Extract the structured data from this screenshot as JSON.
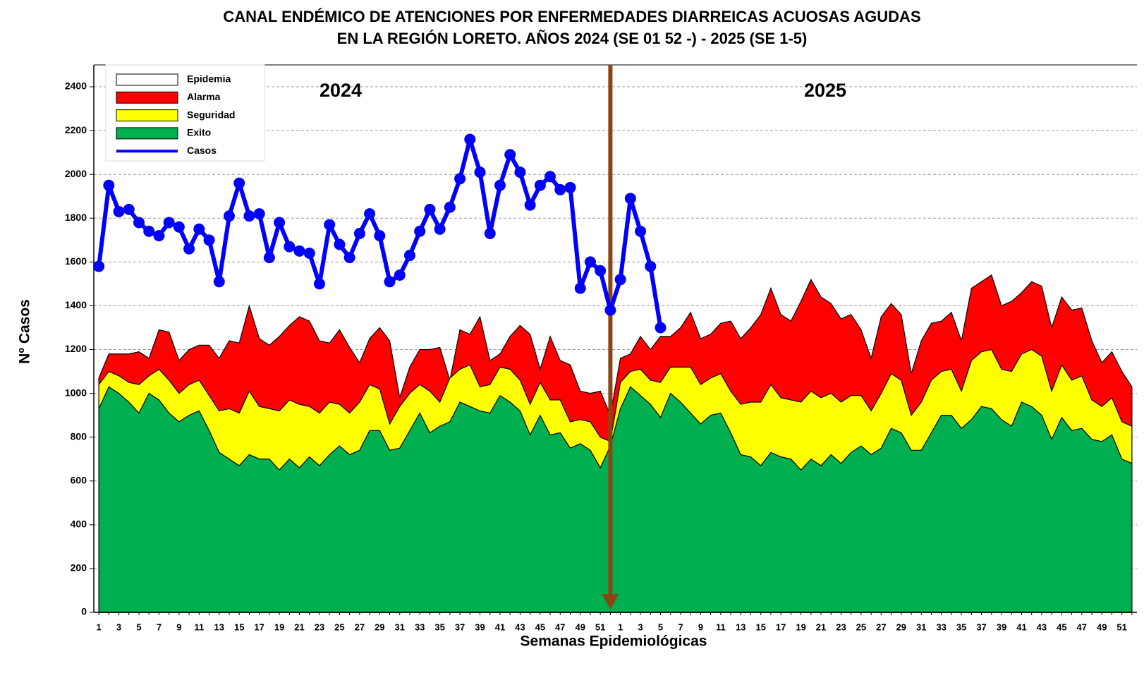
{
  "chart_data": {
    "type": "area",
    "title": "CANAL ENDÉMICO DE ATENCIONES POR ENFERMEDADES DIARREICAS ACUOSAS AGUDAS",
    "subtitle": "EN LA REGIÓN LORETO.  AÑOS 2024 (SE 01 52 -) - 2025 (SE 1-5)",
    "x_label": "Semanas Epidemiológicas",
    "y_label": "Nº Casos",
    "annotations": [
      "2024",
      "2025"
    ],
    "legend": "upper left",
    "grid": true,
    "ylim": [
      0,
      2500
    ],
    "yticks": [
      0,
      200,
      400,
      600,
      800,
      1000,
      1200,
      1400,
      1600,
      1800,
      2000,
      2200,
      2400
    ],
    "categories": [
      "1",
      null,
      "3",
      null,
      "5",
      null,
      "7",
      null,
      "9",
      null,
      "11",
      null,
      "13",
      null,
      "15",
      null,
      "17",
      null,
      "19",
      null,
      "21",
      null,
      "23",
      null,
      "25",
      null,
      "27",
      null,
      "29",
      null,
      "31",
      null,
      "33",
      null,
      "35",
      null,
      "37",
      null,
      "39",
      null,
      "41",
      null,
      "43",
      null,
      "45",
      null,
      "47",
      null,
      "49",
      null,
      "51",
      null,
      "1",
      null,
      "3",
      null,
      "5",
      null,
      "7",
      null,
      "9",
      null,
      "11",
      null,
      "13",
      null,
      "15",
      null,
      "17",
      null,
      "19",
      null,
      "21",
      null,
      "23",
      null,
      "25",
      null,
      "27",
      null,
      "29",
      null,
      "31",
      null,
      "33",
      null,
      "35",
      null,
      "37",
      null,
      "39",
      null,
      "41",
      null,
      "43",
      null,
      "45",
      null,
      "47",
      null,
      "49",
      null,
      "51",
      null
    ],
    "series": [
      {
        "name": "Epidemia",
        "color": "#ffffff"
      },
      {
        "name": "Alarma",
        "color": "#ff0000",
        "values": [
          1070,
          1180,
          1180,
          1180,
          1190,
          1160,
          1290,
          1280,
          1150,
          1200,
          1220,
          1220,
          1160,
          1240,
          1230,
          1400,
          1250,
          1220,
          1260,
          1310,
          1350,
          1330,
          1240,
          1230,
          1290,
          1210,
          1140,
          1250,
          1300,
          1240,
          980,
          1120,
          1200,
          1200,
          1210,
          1060,
          1290,
          1270,
          1350,
          1150,
          1180,
          1260,
          1310,
          1270,
          1110,
          1260,
          1150,
          1130,
          1010,
          1000,
          1010,
          900,
          1160,
          1180,
          1260,
          1200,
          1260,
          1260,
          1300,
          1370,
          1250,
          1270,
          1320,
          1330,
          1250,
          1300,
          1360,
          1480,
          1360,
          1330,
          1420,
          1520,
          1440,
          1410,
          1340,
          1360,
          1290,
          1160,
          1350,
          1410,
          1360,
          1090,
          1240,
          1320,
          1330,
          1370,
          1240,
          1480,
          1510,
          1540,
          1400,
          1420,
          1460,
          1510,
          1490,
          1300,
          1440,
          1380,
          1390,
          1240,
          1140,
          1190,
          1100,
          1030
        ]
      },
      {
        "name": "Seguridad",
        "color": "#ffff00",
        "values": [
          1040,
          1100,
          1080,
          1050,
          1040,
          1080,
          1110,
          1060,
          1000,
          1040,
          1060,
          990,
          920,
          930,
          910,
          1010,
          940,
          930,
          920,
          970,
          950,
          940,
          910,
          960,
          950,
          910,
          960,
          1040,
          1020,
          860,
          940,
          1000,
          1040,
          1010,
          960,
          1070,
          1110,
          1130,
          1030,
          1040,
          1120,
          1110,
          1060,
          950,
          1050,
          970,
          970,
          870,
          880,
          870,
          800,
          780,
          1050,
          1100,
          1110,
          1060,
          1050,
          1120,
          1120,
          1120,
          1040,
          1070,
          1090,
          1010,
          950,
          960,
          960,
          1040,
          980,
          970,
          960,
          1010,
          980,
          1000,
          960,
          990,
          990,
          920,
          1000,
          1090,
          1060,
          900,
          960,
          1060,
          1100,
          1110,
          1010,
          1150,
          1190,
          1200,
          1110,
          1100,
          1180,
          1200,
          1170,
          1010,
          1130,
          1060,
          1080,
          970,
          940,
          980,
          870,
          850
        ]
      },
      {
        "name": "Exito",
        "color": "#00b050",
        "values": [
          930,
          1030,
          1000,
          960,
          910,
          1000,
          970,
          910,
          870,
          900,
          920,
          830,
          730,
          700,
          670,
          720,
          700,
          700,
          650,
          700,
          660,
          710,
          670,
          720,
          760,
          720,
          740,
          830,
          830,
          740,
          750,
          830,
          910,
          820,
          850,
          870,
          960,
          940,
          920,
          910,
          990,
          960,
          920,
          810,
          900,
          810,
          820,
          750,
          770,
          740,
          660,
          760,
          930,
          1030,
          990,
          950,
          890,
          1000,
          960,
          910,
          860,
          900,
          910,
          820,
          720,
          710,
          670,
          730,
          710,
          700,
          650,
          700,
          670,
          720,
          680,
          730,
          760,
          720,
          750,
          840,
          820,
          740,
          740,
          820,
          900,
          900,
          840,
          880,
          940,
          930,
          880,
          850,
          960,
          940,
          900,
          790,
          890,
          830,
          840,
          790,
          780,
          810,
          700,
          680
        ]
      },
      {
        "name": "Casos",
        "color": "#0000ff",
        "values": [
          1580,
          1950,
          1830,
          1840,
          1780,
          1740,
          1720,
          1780,
          1760,
          1660,
          1750,
          1700,
          1510,
          1810,
          1960,
          1810,
          1820,
          1620,
          1780,
          1670,
          1650,
          1640,
          1500,
          1770,
          1680,
          1620,
          1730,
          1820,
          1720,
          1510,
          1540,
          1630,
          1740,
          1840,
          1750,
          1850,
          1980,
          2160,
          2010,
          1730,
          1950,
          2090,
          2010,
          1860,
          1950,
          1990,
          1930,
          1940,
          1480,
          1600,
          1560,
          1380,
          1520,
          1890,
          1740,
          1580,
          1300,
          null,
          null,
          null,
          null,
          null,
          null,
          null,
          null,
          null,
          null,
          null,
          null,
          null,
          null,
          null,
          null,
          null,
          null,
          null,
          null,
          null,
          null,
          null,
          null,
          null,
          null,
          null,
          null,
          null,
          null,
          null,
          null,
          null,
          null,
          null,
          null,
          null,
          null,
          null,
          null,
          null,
          null,
          null,
          null,
          null,
          null,
          null
        ]
      }
    ]
  }
}
